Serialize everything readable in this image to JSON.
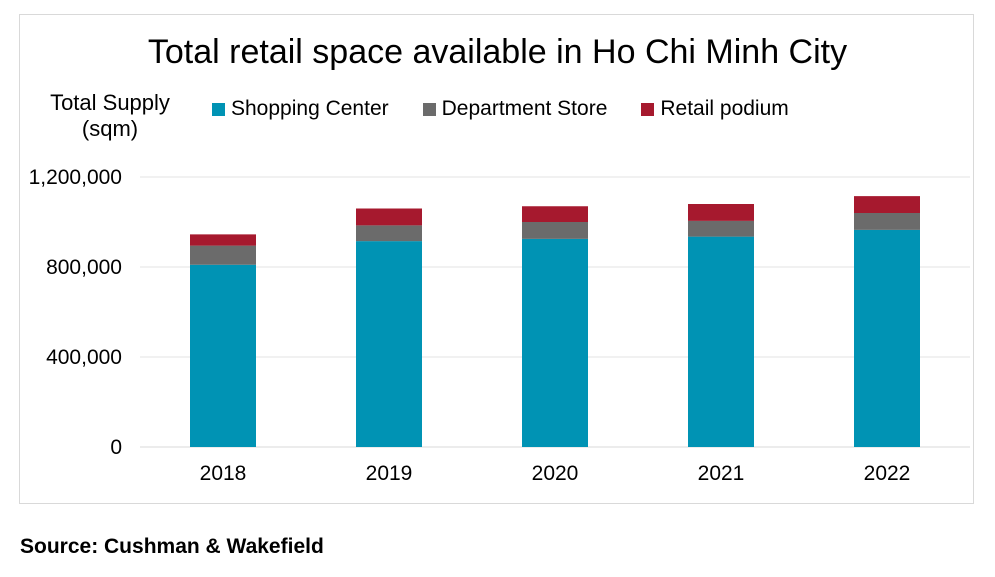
{
  "chart_data": {
    "type": "bar",
    "stacked": true,
    "title": "Total retail space available in Ho Chi Minh City",
    "ylabel_lines": [
      "Total Supply",
      "(sqm)"
    ],
    "xlabel": "",
    "categories": [
      "2018",
      "2019",
      "2020",
      "2021",
      "2022"
    ],
    "series": [
      {
        "name": "Shopping Center",
        "color": "#0093b4",
        "values": [
          810000,
          915000,
          925000,
          935000,
          965000
        ]
      },
      {
        "name": "Department Store",
        "color": "#6b6b6b",
        "values": [
          85000,
          70000,
          75000,
          70000,
          75000
        ]
      },
      {
        "name": "Retail podium",
        "color": "#a6192e",
        "values": [
          50000,
          75000,
          70000,
          75000,
          75000
        ]
      }
    ],
    "ylim": [
      0,
      1200000
    ],
    "yticks": [
      0,
      400000,
      800000,
      1200000
    ],
    "ytick_labels": [
      "0",
      "400,000",
      "800,000",
      "1,200,000"
    ],
    "grid": true,
    "legend_position": "top"
  },
  "source": "Source: Cushman & Wakefield"
}
